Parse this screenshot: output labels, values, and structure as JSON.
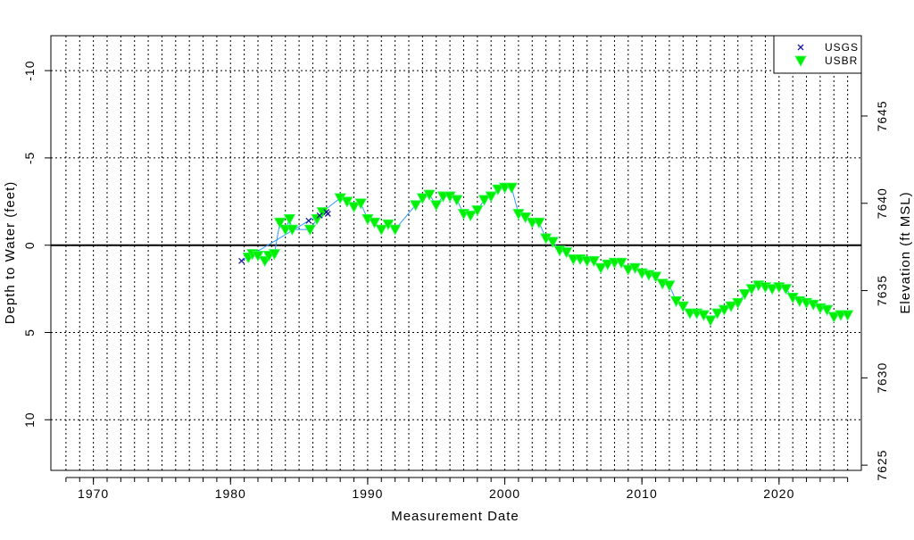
{
  "chart_data": {
    "type": "scatter",
    "x_label": "Measurement Date",
    "y_label": "Depth to Water (feet)",
    "y2_label": "Elevation (ft MSL)",
    "xlim": [
      1966.9,
      2026
    ],
    "xticks": [
      1970,
      1980,
      1990,
      2000,
      2010,
      2020
    ],
    "xminor": [
      1968,
      1969,
      1970,
      1971,
      1972,
      1973,
      1974,
      1975,
      1976,
      1977,
      1978,
      1979,
      1980,
      1981,
      1982,
      1983,
      1984,
      1985,
      1986,
      1987,
      1988,
      1989,
      1990,
      1991,
      1992,
      1993,
      1994,
      1995,
      1996,
      1997,
      1998,
      1999,
      2000,
      2001,
      2002,
      2003,
      2004,
      2005,
      2006,
      2007,
      2008,
      2009,
      2010,
      2011,
      2012,
      2013,
      2014,
      2015,
      2016,
      2017,
      2018,
      2019,
      2020,
      2021,
      2022,
      2023,
      2024,
      2025
    ],
    "ylim": [
      12.9,
      -12
    ],
    "yticks": [
      -10,
      -5,
      0,
      5,
      10
    ],
    "y2lim": [
      7624.7,
      7649.6
    ],
    "y2ticks": [
      7625,
      7630,
      7635,
      7640,
      7645
    ],
    "grid": true,
    "legend": "top-right",
    "line_color": "#3399ff",
    "series": [
      {
        "name": "USGS",
        "color": "#1a1a9a",
        "marker": "x",
        "x": [
          1980.8,
          1985.7,
          1986.5,
          1987.0,
          1987.1
        ],
        "values": [
          0.9,
          -1.4,
          -1.7,
          -1.9,
          -1.8
        ]
      },
      {
        "name": "USBR",
        "color": "#00ee00",
        "marker": "triangle-down",
        "x": [
          1981.3,
          1981.6,
          1982,
          1982.5,
          1982.8,
          1983.2,
          1983.6,
          1984,
          1984.3,
          1984.5,
          1985.8,
          1986.3,
          1986.7,
          1988,
          1988.5,
          1989,
          1989.5,
          1990,
          1990.5,
          1991,
          1991.5,
          1992,
          1993.5,
          1994,
          1994.5,
          1995,
          1995.5,
          1996,
          1996.5,
          1997,
          1997.5,
          1998,
          1998.5,
          1999,
          1999.5,
          2000,
          2000.5,
          2001,
          2001.5,
          2002,
          2002.5,
          2003,
          2003.5,
          2004,
          2004.5,
          2005,
          2005.5,
          2006,
          2006.5,
          2007,
          2007.5,
          2008,
          2008.5,
          2009,
          2009.5,
          2010,
          2010.5,
          2011,
          2011.5,
          2012,
          2012.5,
          2013,
          2013.5,
          2014,
          2014.5,
          2015,
          2015.5,
          2016,
          2016.5,
          2017,
          2017.5,
          2018,
          2018.5,
          2019,
          2019.5,
          2020,
          2020.5,
          2021,
          2021.5,
          2022,
          2022.5,
          2023,
          2023.5,
          2024,
          2024.5,
          2025
        ],
        "values": [
          0.7,
          0.5,
          0.6,
          0.9,
          0.6,
          0.5,
          -1.3,
          -0.9,
          -1.5,
          -0.9,
          -0.9,
          -1.5,
          -1.9,
          -2.7,
          -2.5,
          -2.2,
          -2.4,
          -1.5,
          -1.3,
          -0.9,
          -1.2,
          -0.9,
          -2.3,
          -2.7,
          -2.9,
          -2.3,
          -2.8,
          -2.8,
          -2.6,
          -1.8,
          -1.7,
          -2.0,
          -2.6,
          -2.8,
          -3.2,
          -3.3,
          -3.3,
          -1.8,
          -1.6,
          -1.3,
          -1.3,
          -0.4,
          -0.2,
          0.3,
          0.4,
          0.8,
          0.8,
          0.9,
          0.9,
          1.3,
          1.1,
          1.0,
          1.0,
          1.4,
          1.3,
          1.6,
          1.7,
          1.8,
          2.2,
          2.3,
          3.2,
          3.5,
          3.9,
          3.9,
          4.0,
          4.3,
          3.9,
          3.7,
          3.5,
          3.3,
          2.8,
          2.5,
          2.3,
          2.4,
          2.5,
          2.4,
          2.5,
          3.0,
          3.2,
          3.3,
          3.4,
          3.6,
          3.7,
          4.1,
          4.0,
          4.0
        ]
      }
    ]
  }
}
